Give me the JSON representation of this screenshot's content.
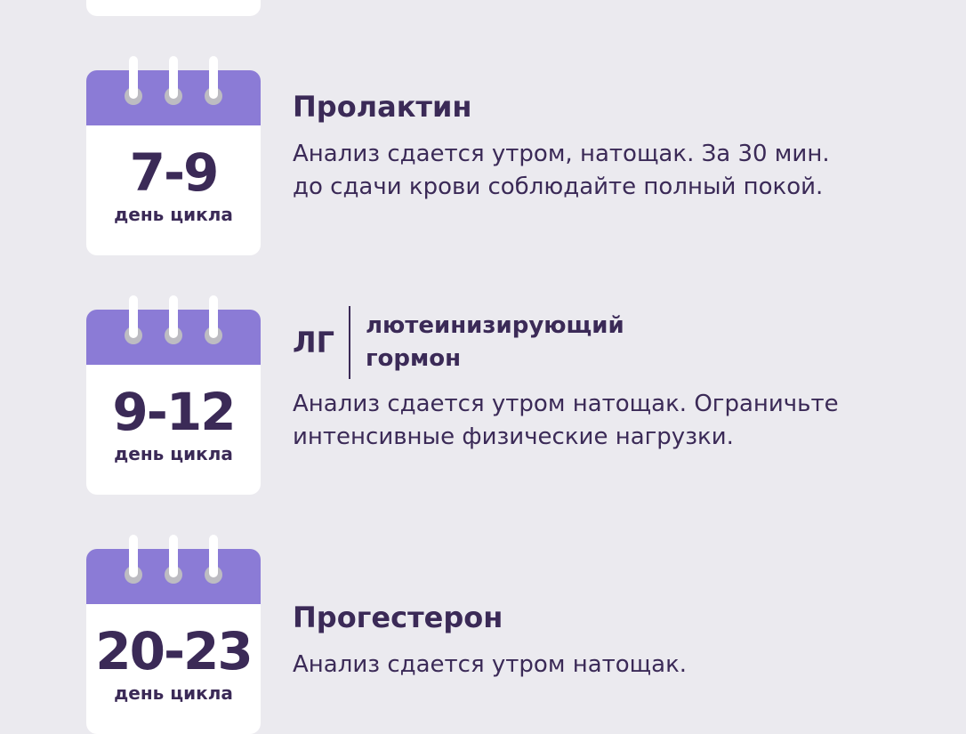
{
  "colors": {
    "background": "#ebeaef",
    "calendar_header": "#8b7bd6",
    "text": "#3b2a57"
  },
  "items": [
    {
      "days": "7-9",
      "day_label": "день цикла",
      "title": "Пролактин",
      "description": [
        "Анализ сдается утром, натощак. За 30 мин.",
        "до сдачи крови соблюдайте полный покой."
      ]
    },
    {
      "days": "9-12",
      "day_label": "день цикла",
      "title": "ЛГ",
      "title_full": [
        "лютеинизирующий",
        "гормон"
      ],
      "description": [
        "Анализ сдается утром натощак. Ограничьте",
        "интенсивные физические нагрузки."
      ]
    },
    {
      "days": "20-23",
      "day_label": "день цикла",
      "title": "Прогестерон",
      "description": [
        "Анализ сдается утром натощак."
      ]
    }
  ]
}
